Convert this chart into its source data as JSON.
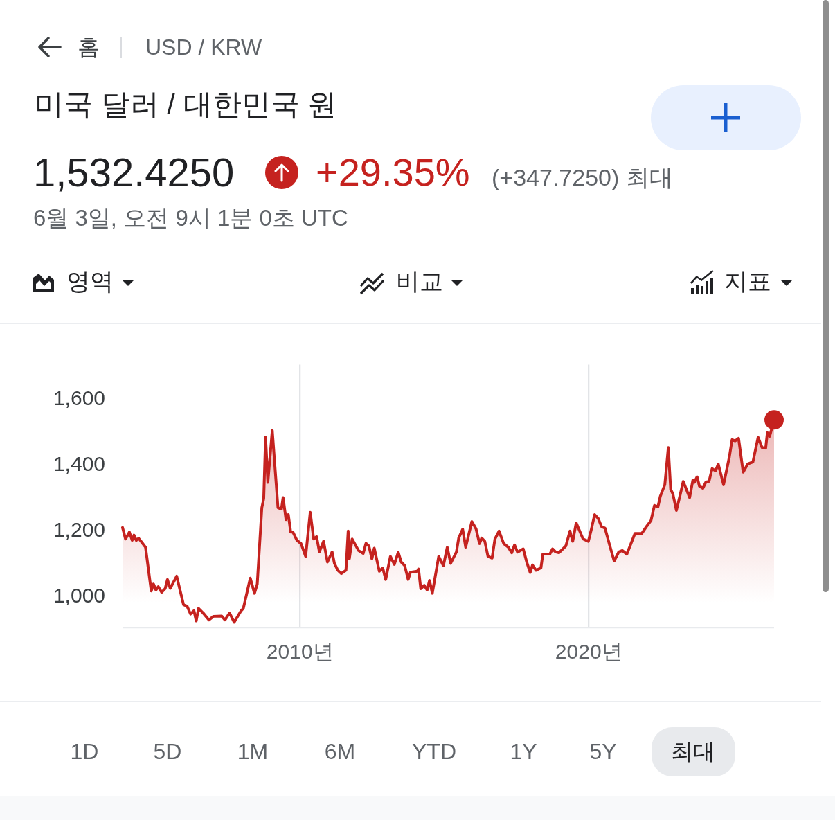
{
  "chart_data": {
    "type": "area",
    "title": "미국 달러 / 대한민국 원",
    "annotations": [
      "홈",
      "USD / KRW",
      "1,532.4250",
      "+29.35%",
      "(+347.7250) 최대",
      "6월 3일, 오전 9시 1분 0초 UTC",
      "영역",
      "비교",
      "지표",
      "1D",
      "5D",
      "1M",
      "6M",
      "YTD",
      "1Y",
      "5Y",
      "최대"
    ],
    "x": [
      "2003-11-10",
      "2003-12-18",
      "2004-02-05",
      "2004-03-11",
      "2004-04-03",
      "2004-05-02",
      "2004-06-01",
      "2004-07-14",
      "2004-08-27",
      "2004-11-07",
      "2004-12-06",
      "2005-01-06",
      "2005-02-04",
      "2005-03-19",
      "2005-05-02",
      "2005-05-31",
      "2005-07-05",
      "2005-09-25",
      "2005-12-21",
      "2006-02-03",
      "2006-03-19",
      "2006-05-02",
      "2006-05-30",
      "2006-06-28",
      "2006-08-26",
      "2006-11-06",
      "2007-01-04",
      "2007-04-16",
      "2007-05-29",
      "2007-07-26",
      "2007-09-22",
      "2007-12-19",
      "2008-01-16",
      "2008-04-13",
      "2008-06-05",
      "2008-07-10",
      "2008-09-06",
      "2008-09-30",
      "2008-10-23",
      "2008-11-21",
      "2009-01-16",
      "2009-02-14",
      "2009-03-29",
      "2009-05-12",
      "2009-06-02",
      "2009-07-09",
      "2009-08-07",
      "2009-09-06",
      "2009-10-05",
      "2009-11-24",
      "2010-01-15",
      "2010-03-14",
      "2010-05-11",
      "2010-06-24",
      "2010-07-31",
      "2010-09-04",
      "2010-10-27",
      "2010-12-15",
      "2011-02-12",
      "2011-03-13",
      "2011-04-25",
      "2011-06-08",
      "2011-08-06",
      "2011-09-03",
      "2011-09-18",
      "2011-10-23",
      "2012-01-12",
      "2012-03-11",
      "2012-04-15",
      "2012-05-22",
      "2012-06-29",
      "2012-07-29",
      "2012-10-01",
      "2012-11-13",
      "2012-12-21",
      "2013-02-18",
      "2013-04-09",
      "2013-05-28",
      "2013-07-05",
      "2013-08-18",
      "2013-10-01",
      "2013-10-30",
      "2014-01-25",
      "2014-02-09",
      "2014-03-09",
      "2014-04-22",
      "2014-05-29",
      "2014-06-28",
      "2014-08-02",
      "2014-10-22",
      "2014-12-20",
      "2015-02-07",
      "2015-03-22",
      "2015-06-03",
      "2015-07-02",
      "2015-08-21",
      "2015-09-28",
      "2015-12-15",
      "2016-02-06",
      "2016-03-21",
      "2016-04-18",
      "2016-05-27",
      "2016-07-06",
      "2016-08-27",
      "2016-10-02",
      "2016-11-23",
      "2017-01-21",
      "2017-03-21",
      "2017-05-03",
      "2017-06-07",
      "2017-07-15",
      "2017-09-25",
      "2017-11-08",
      "2017-12-22",
      "2018-01-20",
      "2018-03-05",
      "2018-05-07",
      "2018-05-31",
      "2018-08-27",
      "2018-10-01",
      "2018-11-07",
      "2018-12-21",
      "2019-03-18",
      "2019-05-09",
      "2019-06-13",
      "2019-07-27",
      "2019-10-22",
      "2019-12-28",
      "2020-02-02",
      "2020-03-16",
      "2020-04-29",
      "2020-06-11",
      "2020-07-25",
      "2020-09-21",
      "2020-11-18",
      "2021-01-16",
      "2021-03-01",
      "2021-04-28",
      "2021-08-08",
      "2021-11-03",
      "2022-01-01",
      "2022-02-27",
      "2022-04-12",
      "2022-05-26",
      "2022-06-25",
      "2022-08-21",
      "2022-10-04",
      "2022-11-03",
      "2022-12-01",
      "2023-01-14",
      "2023-02-27",
      "2023-04-11",
      "2023-07-01",
      "2023-08-11",
      "2023-08-29",
      "2023-10-03",
      "2023-11-01",
      "2023-12-15",
      "2024-01-22",
      "2024-03-02",
      "2024-04-10",
      "2024-05-23",
      "2024-06-27",
      "2024-09-02",
      "2024-11-14",
      "2024-12-19",
      "2025-01-26",
      "2025-03-11",
      "2025-05-08",
      "2025-07-05",
      "2025-09-08",
      "2025-11-13",
      "2026-01-02",
      "2026-02-17",
      "2026-03-10",
      "2026-04-08",
      "2026-06-03"
    ],
    "series": [
      {
        "type": "area",
        "color": "#c5221f",
        "values": [
          1205,
          1170,
          1191,
          1166,
          1182,
          1166,
          1172,
          1159,
          1145,
          1012,
          1033,
          1015,
          1025,
          1008,
          1019,
          1047,
          1020,
          1057,
          970,
          966,
          942,
          952,
          921,
          959,
          945,
          924,
          935,
          936,
          924,
          945,
          917,
          952,
          959,
          1051,
          1005,
          1033,
          1265,
          1293,
          1479,
          1342,
          1500,
          1405,
          1265,
          1261,
          1296,
          1229,
          1244,
          1191,
          1191,
          1166,
          1156,
          1117,
          1251,
          1170,
          1177,
          1131,
          1163,
          1100,
          1131,
          1096,
          1075,
          1065,
          1075,
          1194,
          1110,
          1170,
          1135,
          1126,
          1157,
          1149,
          1110,
          1142,
          1072,
          1082,
          1047,
          1117,
          1093,
          1130,
          1100,
          1089,
          1047,
          1069,
          1072,
          1079,
          1019,
          1029,
          1015,
          1044,
          1005,
          1117,
          1089,
          1145,
          1096,
          1131,
          1173,
          1200,
          1145,
          1223,
          1201,
          1156,
          1173,
          1163,
          1117,
          1112,
          1170,
          1194,
          1156,
          1145,
          1128,
          1152,
          1130,
          1140,
          1100,
          1068,
          1091,
          1075,
          1082,
          1124,
          1124,
          1140,
          1131,
          1128,
          1149,
          1194,
          1163,
          1219,
          1170,
          1163,
          1198,
          1244,
          1233,
          1208,
          1203,
          1152,
          1103,
          1131,
          1135,
          1124,
          1187,
          1187,
          1208,
          1226,
          1272,
          1268,
          1300,
          1335,
          1448,
          1321,
          1307,
          1257,
          1300,
          1345,
          1296,
          1349,
          1342,
          1359,
          1331,
          1324,
          1343,
          1345,
          1384,
          1377,
          1398,
          1335,
          1419,
          1472,
          1468,
          1476,
          1373,
          1398,
          1404,
          1479,
          1448,
          1446,
          1493,
          1482,
          1532
        ]
      },
      {
        "type": "scatter",
        "color": "#c5221f",
        "marker": "circle",
        "x": [
          "2026-06-03"
        ],
        "values": [
          1532
        ]
      }
    ],
    "xlim": [
      "2003-11-10",
      "2026-06-03"
    ],
    "xticks": [
      {
        "value": "2010",
        "label": "2010년"
      },
      {
        "value": "2020",
        "label": "2020년"
      }
    ],
    "ylim": [
      900,
      1700
    ],
    "yticks": [
      {
        "value": 1000,
        "label": "1,000"
      },
      {
        "value": 1200,
        "label": "1,200"
      },
      {
        "value": 1400,
        "label": "1,400"
      },
      {
        "value": 1600,
        "label": "1,600"
      }
    ],
    "grid": "x"
  }
}
